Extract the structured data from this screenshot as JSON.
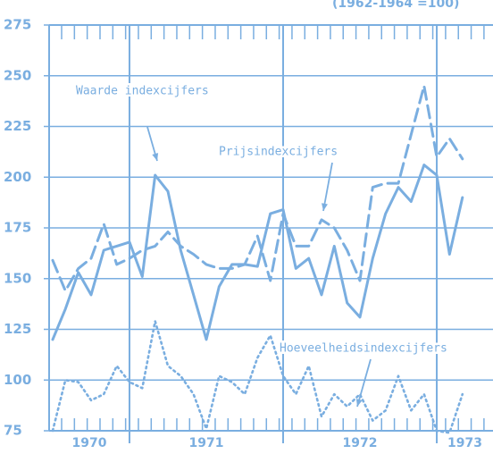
{
  "chart_data": {
    "type": "line",
    "subtitle": "(1962-1964 =100)",
    "annotations": [
      "Waarde indexcijfers",
      "Prijsindexcijfers",
      "Hoeveelheidsindexcijfers"
    ],
    "x": [
      1970.5,
      1970.583,
      1970.667,
      1970.75,
      1970.833,
      1970.917,
      1971.0,
      1971.083,
      1971.167,
      1971.25,
      1971.333,
      1971.417,
      1971.5,
      1971.583,
      1971.667,
      1971.75,
      1971.833,
      1971.917,
      1972.0,
      1972.083,
      1972.167,
      1972.25,
      1972.333,
      1972.417,
      1972.5,
      1972.583,
      1972.667,
      1972.75,
      1972.833,
      1972.917,
      1973.0,
      1973.083,
      1973.167
    ],
    "series": [
      {
        "name": "Waarde indexcijfers",
        "color": "#7aaee0",
        "dash": "solid",
        "values": [
          120,
          135,
          153,
          142,
          164,
          166,
          168,
          151,
          201,
          193,
          164,
          142,
          120,
          146,
          157,
          157,
          156,
          182,
          184,
          155,
          160,
          142,
          166,
          138,
          131,
          160,
          182,
          195,
          188,
          206,
          201,
          162,
          190
        ]
      },
      {
        "name": "Prijsindexcijfers",
        "color": "#7aaee0",
        "dash": "dashed",
        "values": [
          159,
          144,
          155,
          160,
          177,
          157,
          160,
          164,
          166,
          173,
          166,
          162,
          157,
          155,
          155,
          157,
          171,
          149,
          182,
          166,
          166,
          179,
          175,
          164,
          149,
          195,
          197,
          197,
          221,
          245,
          210,
          219,
          209
        ]
      },
      {
        "name": "Hoeveelheidsindexcijfers",
        "color": "#7aaee0",
        "dash": "dotted",
        "values": [
          75,
          100,
          99,
          90,
          93,
          107,
          99,
          96,
          129,
          107,
          102,
          93,
          76,
          102,
          99,
          93,
          111,
          122,
          102,
          93,
          107,
          82,
          93,
          87,
          93,
          80,
          85,
          102,
          85,
          93,
          75,
          74,
          93
        ]
      }
    ],
    "xlim": [
      1970.477,
      1973.366
    ],
    "xticks": [
      1970,
      1971,
      1972,
      1973
    ],
    "ylim": [
      75,
      275
    ],
    "yticks": [
      75,
      100,
      125,
      150,
      175,
      200,
      225,
      250,
      275
    ],
    "grid": true
  }
}
